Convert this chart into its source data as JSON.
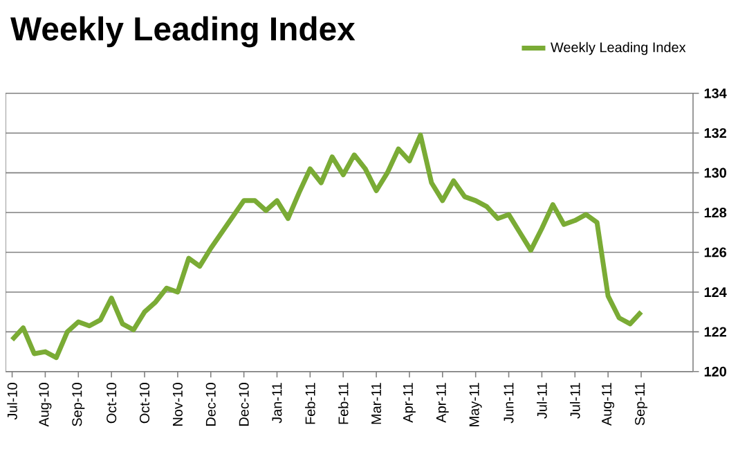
{
  "chart_data": {
    "type": "line",
    "title": "Weekly Leading Index",
    "categories": [
      "Jul-10",
      null,
      null,
      "Aug-10",
      null,
      null,
      "Sep-10",
      null,
      null,
      "Oct-10",
      null,
      null,
      "Oct-10",
      null,
      null,
      "Nov-10",
      null,
      null,
      "Dec-10",
      null,
      null,
      "Dec-10",
      null,
      null,
      "Jan-11",
      null,
      null,
      "Feb-11",
      null,
      null,
      "Feb-11",
      null,
      null,
      "Mar-11",
      null,
      null,
      "Apr-11",
      null,
      null,
      "Apr-11",
      null,
      null,
      "May-11",
      null,
      null,
      "Jun-11",
      null,
      null,
      "Jul-11",
      null,
      null,
      "Jul-11",
      null,
      null,
      "Aug-11",
      null,
      null,
      "Sep-11"
    ],
    "series": [
      {
        "name": "Weekly Leading Index",
        "color": "#7aab35",
        "values": [
          121.6,
          122.2,
          120.9,
          121.0,
          120.7,
          122.0,
          122.5,
          122.3,
          122.6,
          123.7,
          122.4,
          122.1,
          123.0,
          123.5,
          124.2,
          124.0,
          125.7,
          125.3,
          126.2,
          127.0,
          127.8,
          128.6,
          128.6,
          128.1,
          128.6,
          127.7,
          129.0,
          130.2,
          129.5,
          130.8,
          129.9,
          130.9,
          130.2,
          129.1,
          130.0,
          131.2,
          130.6,
          131.9,
          129.5,
          128.6,
          129.6,
          128.8,
          128.6,
          128.3,
          127.7,
          127.9,
          127.0,
          126.1,
          127.2,
          128.4,
          127.4,
          127.6,
          127.9,
          127.5,
          123.8,
          122.7,
          122.4,
          123.0
        ]
      }
    ],
    "ylim": [
      120,
      134
    ],
    "yticks": [
      120,
      122,
      124,
      126,
      128,
      130,
      132,
      134
    ],
    "grid": "y",
    "legend": "top right",
    "marker": "none",
    "line_style": "solid"
  }
}
